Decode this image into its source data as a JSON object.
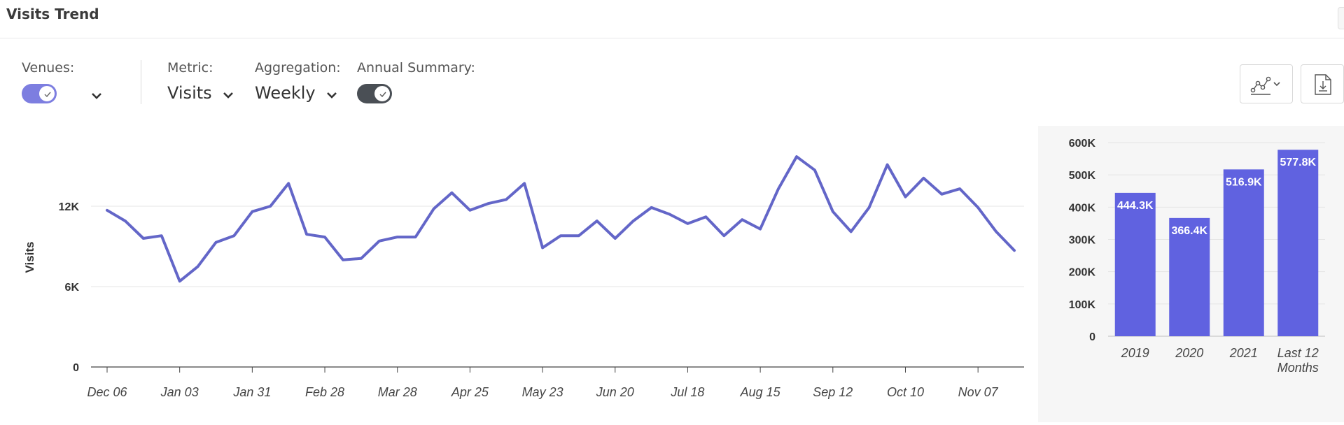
{
  "header": {
    "title": "Visits Trend"
  },
  "controls": {
    "venues": {
      "label": "Venues:",
      "toggle_on": true,
      "toggle_color": "#7d7ee0"
    },
    "metric": {
      "label": "Metric:",
      "value": "Visits"
    },
    "aggregation": {
      "label": "Aggregation:",
      "value": "Weekly"
    },
    "annual_summary": {
      "label": "Annual Summary:",
      "toggle_on": true,
      "toggle_color": "#4a4f55"
    }
  },
  "toolbar": {
    "chart_type_icon": "line-chart-icon",
    "download_icon": "download-file-icon"
  },
  "chart_data": [
    {
      "type": "line",
      "ylabel": "Visits",
      "ylim": [
        0,
        18000
      ],
      "yticks": [
        0,
        6000,
        12000
      ],
      "ytick_labels": [
        "0",
        "6K",
        "12K"
      ],
      "x_tick_labels": [
        "Dec 06",
        "Jan 03",
        "Jan 31",
        "Feb 28",
        "Mar 28",
        "Apr 25",
        "May 23",
        "Jun 20",
        "Jul 18",
        "Aug 15",
        "Sep 12",
        "Oct 10",
        "Nov 07"
      ],
      "x_tick_index": [
        0,
        4,
        8,
        12,
        16,
        20,
        24,
        28,
        32,
        36,
        40,
        44,
        48
      ],
      "line_color": "#6366c8",
      "grid": true,
      "series": [
        {
          "values": [
            11700,
            10900,
            9600,
            9800,
            6400,
            7500,
            9300,
            9800,
            11600,
            12000,
            13700,
            9900,
            9700,
            8000,
            8100,
            9400,
            9700,
            9700,
            11800,
            13000,
            11700,
            12200,
            12500,
            13700,
            8900,
            9800,
            9800,
            10900,
            9600,
            10900,
            11900,
            11400,
            10700,
            11200,
            9800,
            11000,
            10300,
            13300,
            15700,
            14700,
            11600,
            10100,
            11900,
            15100,
            12700,
            14100,
            12900,
            13300,
            11900,
            10100,
            8700
          ]
        }
      ]
    },
    {
      "type": "bar",
      "categories": [
        "2019",
        "2020",
        "2021",
        "Last 12 Months"
      ],
      "values": [
        444300,
        366400,
        516900,
        577800
      ],
      "value_labels": [
        "444.3K",
        "366.4K",
        "516.9K",
        "577.8K"
      ],
      "ylim": [
        0,
        600000
      ],
      "yticks": [
        0,
        100000,
        200000,
        300000,
        400000,
        500000,
        600000
      ],
      "ytick_labels": [
        "0",
        "100K",
        "200K",
        "300K",
        "400K",
        "500K",
        "600K"
      ],
      "bar_color": "#6062e0",
      "grid": true
    }
  ]
}
